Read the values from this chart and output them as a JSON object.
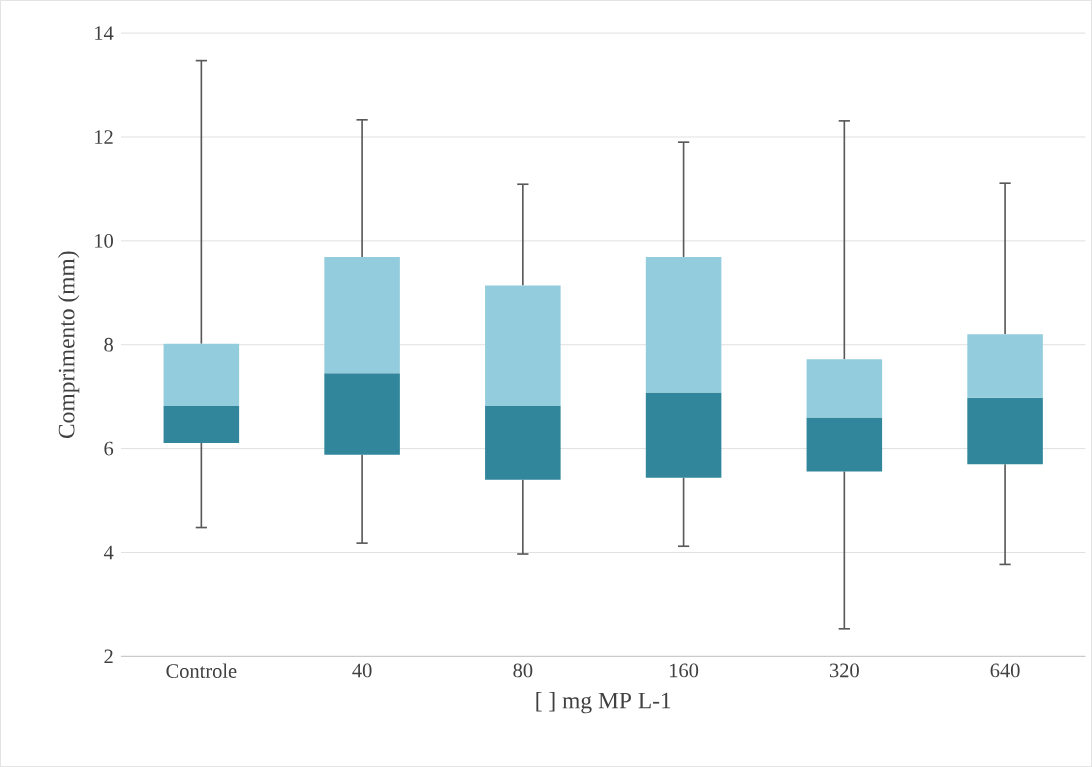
{
  "chart_data": {
    "type": "box",
    "xlabel": "[ ] mg MP L-1",
    "ylabel": "Comprimento (mm)",
    "categories": [
      "Controle",
      "40",
      "80",
      "160",
      "320",
      "640"
    ],
    "color": "#93cddd",
    "series": [
      {
        "color": "#31869b",
        "boxes": [
          {
            "low": 4.48,
            "q1": 6.11,
            "median": 6.82,
            "q3": 8.02,
            "high": 13.47
          },
          {
            "low": 4.18,
            "q1": 5.88,
            "median": 7.45,
            "q3": 9.69,
            "high": 12.33
          },
          {
            "low": 3.97,
            "q1": 5.4,
            "median": 6.82,
            "q3": 9.14,
            "high": 11.09
          },
          {
            "low": 4.12,
            "q1": 5.44,
            "median": 7.08,
            "q3": 9.69,
            "high": 11.9
          },
          {
            "low": 2.53,
            "q1": 5.56,
            "median": 6.6,
            "q3": 7.72,
            "high": 12.31
          },
          {
            "low": 3.77,
            "q1": 5.7,
            "median": 6.98,
            "q3": 8.2,
            "high": 11.11
          }
        ]
      }
    ],
    "ylim": [
      2,
      14
    ],
    "yticks": [
      2,
      4,
      6,
      8,
      10,
      12,
      14
    ],
    "grid": "y"
  }
}
